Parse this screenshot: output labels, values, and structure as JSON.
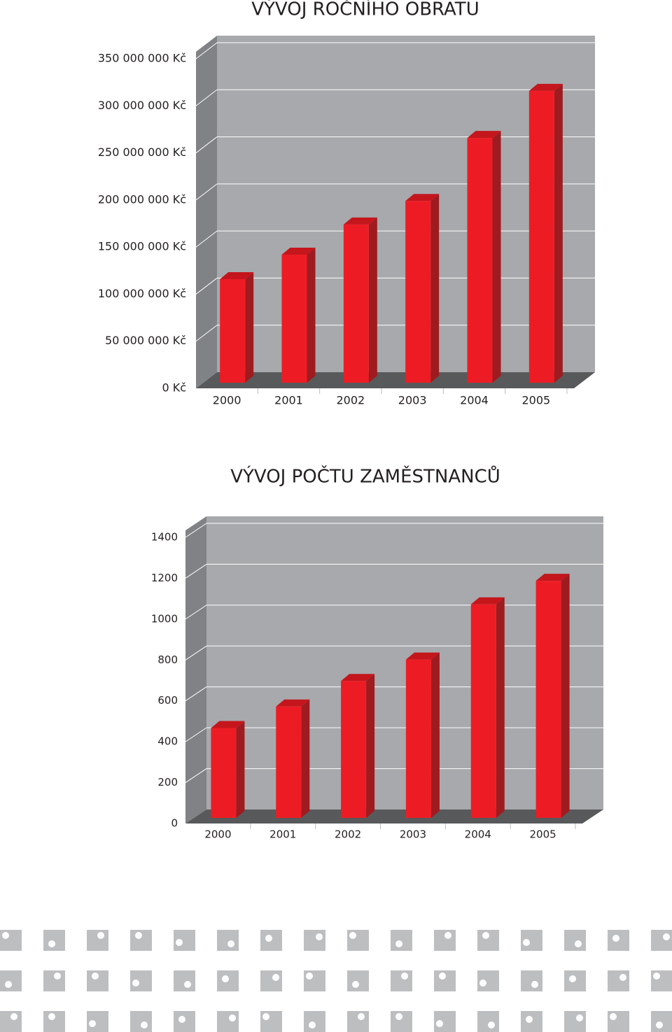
{
  "chart_data": [
    {
      "type": "bar3d",
      "title": "VÝVOJ ROČNÍHO OBRATU",
      "categories": [
        "2000",
        "2001",
        "2002",
        "2003",
        "2004",
        "2005"
      ],
      "values": [
        110000000,
        136000000,
        168000000,
        193000000,
        260000000,
        310000000
      ],
      "color": "#ed1c24",
      "ylim": [
        0,
        350000000
      ],
      "yticks": [
        {
          "value": 0,
          "label": "0 Kč"
        },
        {
          "value": 50000000,
          "label": "50 000 000 Kč"
        },
        {
          "value": 100000000,
          "label": "100 000 000 Kč"
        },
        {
          "value": 150000000,
          "label": "150 000 000 Kč"
        },
        {
          "value": 200000000,
          "label": "200 000 000 Kč"
        },
        {
          "value": 250000000,
          "label": "250 000 000 Kč"
        },
        {
          "value": 300000000,
          "label": "300 000 000 Kč"
        },
        {
          "value": 350000000,
          "label": "350 000 000 Kč"
        }
      ],
      "grid": true
    },
    {
      "type": "bar3d",
      "title": "VÝVOJ POČTU ZAMĚSTNANCŮ",
      "categories": [
        "2000",
        "2001",
        "2002",
        "2003",
        "2004",
        "2005"
      ],
      "values": [
        440,
        545,
        670,
        775,
        1045,
        1160
      ],
      "color": "#ed1c24",
      "ylim": [
        0,
        1400
      ],
      "yticks": [
        0,
        200,
        400,
        600,
        800,
        1000,
        1200,
        1400
      ],
      "grid": true
    }
  ]
}
